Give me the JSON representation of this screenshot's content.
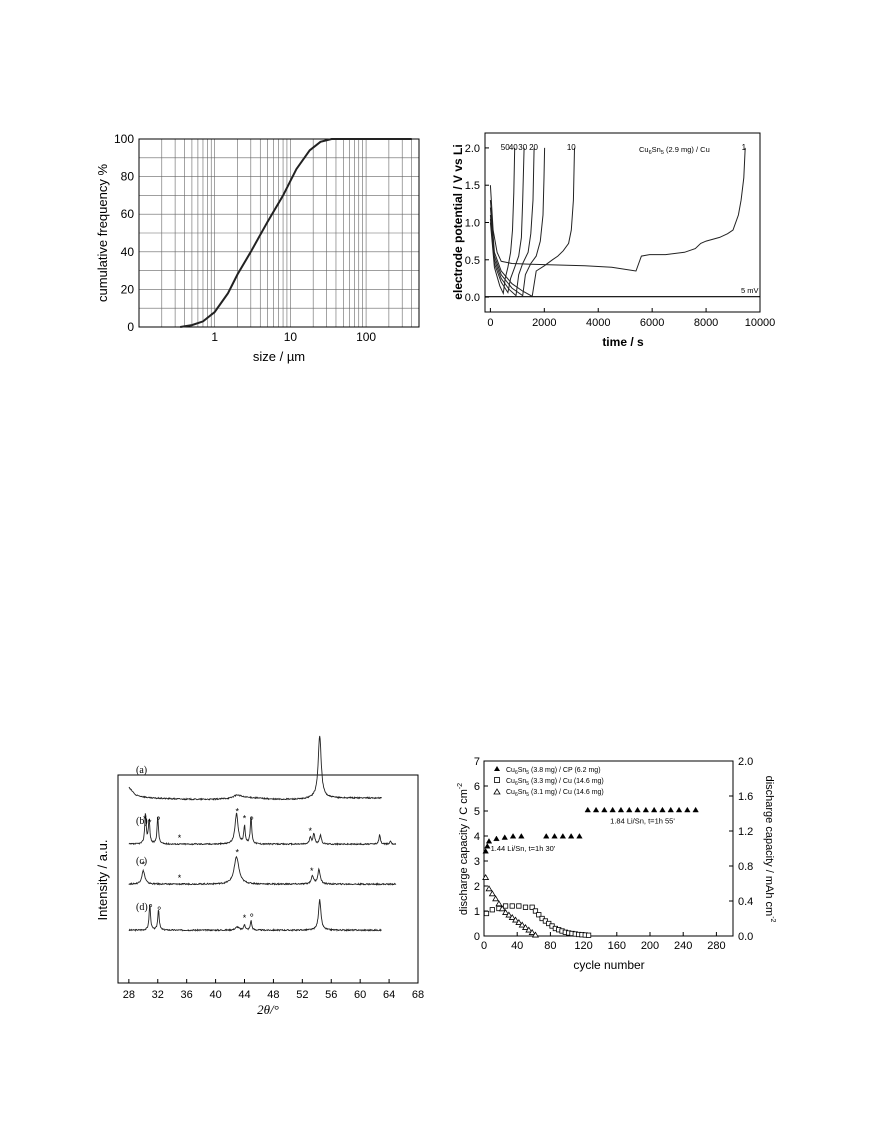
{
  "chart_data": [
    {
      "type": "line",
      "xlabel_prefix": "size / ",
      "xlabel_unit": "µm",
      "ylabel": "cumulative frequency %",
      "x_scale": "log",
      "xlim": [
        0.1,
        500
      ],
      "ylim": [
        0,
        100
      ],
      "xticks": [
        {
          "v": 1,
          "label": "1"
        },
        {
          "v": 10,
          "label": "10"
        },
        {
          "v": 100,
          "label": "100"
        }
      ],
      "yticks": [
        0,
        20,
        40,
        60,
        80,
        100
      ],
      "grid": true,
      "series": [
        {
          "x": [
            0.35,
            0.5,
            0.7,
            1.0,
            1.5,
            2,
            3,
            5,
            8,
            12,
            18,
            25,
            35,
            50,
            100,
            400
          ],
          "y": [
            0,
            1,
            3,
            8,
            18,
            28,
            40,
            56,
            70,
            84,
            94,
            98.5,
            100,
            100,
            100,
            100
          ]
        }
      ]
    },
    {
      "type": "line",
      "xlabel": "time / s",
      "ylabel": "electrode potential / V vs Li",
      "xlim": [
        -200,
        10000
      ],
      "ylim": [
        -0.2,
        2.2
      ],
      "xticks": [
        0,
        2000,
        4000,
        6000,
        8000,
        10000
      ],
      "yticks": [
        0.0,
        0.5,
        1.0,
        1.5,
        2.0
      ],
      "annotations": {
        "legend_text": "Cu6Sn5 (2.9 mg) / Cu",
        "cutoff": "5 mV",
        "cycle_labels": [
          {
            "label": "50",
            "x": 550
          },
          {
            "label": "40",
            "x": 850
          },
          {
            "label": "30",
            "x": 1200
          },
          {
            "label": "20",
            "x": 1600
          },
          {
            "label": "10",
            "x": 3000
          },
          {
            "label": "1",
            "x": 9400
          }
        ]
      },
      "series": [
        {
          "name": "1",
          "x": [
            0,
            100,
            250,
            400,
            800,
            1500,
            2500,
            3500,
            4500,
            5400,
            5500,
            5600,
            5900,
            6500,
            7200,
            7600,
            7800,
            8000,
            8500,
            8800,
            9000,
            9200,
            9300,
            9400,
            9450
          ],
          "y": [
            1.5,
            0.9,
            0.6,
            0.48,
            0.45,
            0.44,
            0.43,
            0.42,
            0.4,
            0.35,
            0.45,
            0.55,
            0.57,
            0.57,
            0.6,
            0.65,
            0.72,
            0.75,
            0.8,
            0.85,
            0.9,
            1.1,
            1.3,
            1.6,
            2.0
          ]
        },
        {
          "name": "10",
          "x": [
            0,
            150,
            400,
            800,
            1200,
            1550,
            1700,
            2000,
            2300,
            2500,
            2700,
            2900,
            3000,
            3080,
            3120
          ],
          "y": [
            1.3,
            0.6,
            0.35,
            0.18,
            0.08,
            0.01,
            0.35,
            0.42,
            0.5,
            0.55,
            0.62,
            0.72,
            0.9,
            1.3,
            2.0
          ]
        },
        {
          "name": "20",
          "x": [
            0,
            150,
            400,
            800,
            1200,
            1300,
            1500,
            1700,
            1850,
            1950,
            1990,
            2010
          ],
          "y": [
            1.2,
            0.55,
            0.3,
            0.12,
            0.02,
            0.3,
            0.45,
            0.55,
            0.75,
            1.1,
            1.6,
            2.0
          ]
        },
        {
          "name": "30",
          "x": [
            0,
            150,
            400,
            700,
            950,
            1050,
            1200,
            1400,
            1500,
            1580,
            1620
          ],
          "y": [
            1.1,
            0.5,
            0.25,
            0.1,
            0.02,
            0.3,
            0.45,
            0.6,
            0.85,
            1.3,
            2.0
          ]
        },
        {
          "name": "40",
          "x": [
            0,
            150,
            400,
            650,
            750,
            900,
            1050,
            1150,
            1200,
            1250
          ],
          "y": [
            1.05,
            0.45,
            0.2,
            0.06,
            0.25,
            0.4,
            0.55,
            0.8,
            1.3,
            2.0
          ]
        },
        {
          "name": "50",
          "x": [
            0,
            150,
            350,
            480,
            550,
            650,
            750,
            820,
            870,
            900
          ],
          "y": [
            1.0,
            0.4,
            0.15,
            0.05,
            0.25,
            0.4,
            0.6,
            0.9,
            1.4,
            2.0
          ]
        }
      ],
      "cutoff_line_y": 0.005
    },
    {
      "type": "line",
      "xlabel": "2θ/°",
      "ylabel": "Intensity / a.u.",
      "xlim": [
        26.5,
        68
      ],
      "xticks": [
        28,
        32,
        36,
        40,
        44,
        48,
        52,
        56,
        60,
        64,
        68
      ],
      "patterns": [
        {
          "label": "(a)",
          "offset": 3,
          "x_end": 63,
          "baseline": [
            [
              28,
              0.55
            ],
            [
              29,
              0.3
            ],
            [
              31,
              0.22
            ],
            [
              36,
              0.18
            ],
            [
              40,
              0.18
            ],
            [
              42,
              0.22
            ],
            [
              43,
              0.32
            ],
            [
              44,
              0.25
            ],
            [
              48,
              0.18
            ],
            [
              52,
              0.18
            ],
            [
              53.5,
              0.22
            ]
          ],
          "peaks": [
            {
              "x": 54.4,
              "h": 1.95,
              "w": 0.25
            }
          ],
          "markers": []
        },
        {
          "label": "(b)",
          "offset": 2,
          "x_end": 65,
          "baseline": [
            [
              28,
              0.12
            ],
            [
              42,
              0.12
            ],
            [
              65,
              0.12
            ]
          ],
          "peaks": [
            {
              "x": 30.3,
              "h": 0.95,
              "w": 0.12
            },
            {
              "x": 30.8,
              "h": 0.75,
              "w": 0.12
            },
            {
              "x": 32.0,
              "h": 0.85,
              "w": 0.12
            },
            {
              "x": 42.9,
              "h": 0.95,
              "w": 0.25
            },
            {
              "x": 44.0,
              "h": 0.55,
              "w": 0.12
            },
            {
              "x": 44.9,
              "h": 0.85,
              "w": 0.12
            },
            {
              "x": 53.1,
              "h": 0.2,
              "w": 0.15
            },
            {
              "x": 53.6,
              "h": 0.32,
              "w": 0.15
            },
            {
              "x": 54.5,
              "h": 0.28,
              "w": 0.15
            },
            {
              "x": 62.7,
              "h": 0.3,
              "w": 0.12
            },
            {
              "x": 64.2,
              "h": 0.1,
              "w": 0.12
            }
          ],
          "markers": [
            {
              "x": 30.2,
              "sym": "*"
            },
            {
              "x": 30.9,
              "sym": "*"
            },
            {
              "x": 32.1,
              "sym": "o"
            },
            {
              "x": 35.0,
              "sym": "*"
            },
            {
              "x": 43.0,
              "sym": "*"
            },
            {
              "x": 44.0,
              "sym": "*"
            },
            {
              "x": 45.0,
              "sym": "o"
            },
            {
              "x": 53.1,
              "sym": "*"
            }
          ]
        },
        {
          "label": "(c)",
          "offset": 1,
          "x_end": 65,
          "baseline": [
            [
              28,
              0.12
            ],
            [
              65,
              0.12
            ]
          ],
          "peaks": [
            {
              "x": 30.0,
              "h": 0.42,
              "w": 0.25
            },
            {
              "x": 42.9,
              "h": 0.85,
              "w": 0.4
            },
            {
              "x": 53.4,
              "h": 0.25,
              "w": 0.2
            },
            {
              "x": 54.3,
              "h": 0.45,
              "w": 0.2
            }
          ],
          "markers": [
            {
              "x": 30.0,
              "sym": "*"
            },
            {
              "x": 35.0,
              "sym": "*"
            },
            {
              "x": 43.0,
              "sym": "*"
            },
            {
              "x": 53.3,
              "sym": "*"
            }
          ]
        },
        {
          "label": "(d)",
          "offset": 0,
          "x_end": 63,
          "baseline": [
            [
              28,
              0.12
            ],
            [
              63,
              0.12
            ]
          ],
          "peaks": [
            {
              "x": 30.9,
              "h": 0.8,
              "w": 0.12
            },
            {
              "x": 32.1,
              "h": 0.65,
              "w": 0.12
            },
            {
              "x": 43.0,
              "h": 0.1,
              "w": 0.3
            },
            {
              "x": 44.0,
              "h": 0.18,
              "w": 0.12
            },
            {
              "x": 44.9,
              "h": 0.3,
              "w": 0.12
            },
            {
              "x": 54.4,
              "h": 0.95,
              "w": 0.2
            }
          ],
          "markers": [
            {
              "x": 31.0,
              "sym": "o"
            },
            {
              "x": 32.2,
              "sym": "o"
            },
            {
              "x": 44.0,
              "sym": "*"
            },
            {
              "x": 45.0,
              "sym": "o"
            }
          ]
        }
      ]
    },
    {
      "type": "scatter",
      "xlabel": "cycle number",
      "ylabel": "discharge capacity / C cm⁻²",
      "y2label": "discharge capacity / mAh cm⁻²",
      "xlim": [
        0,
        300
      ],
      "ylim": [
        0,
        7
      ],
      "y2lim": [
        0,
        2.0
      ],
      "xticks": [
        0,
        40,
        80,
        120,
        160,
        200,
        240,
        280
      ],
      "yticks": [
        0,
        1,
        2,
        3,
        4,
        5,
        6,
        7
      ],
      "y2ticks": [
        0.0,
        0.4,
        0.8,
        1.2,
        1.6,
        2.0
      ],
      "annotations": [
        {
          "text": "1.44 Li/Sn, t=1h 30'",
          "x": 8,
          "y": 3.4
        },
        {
          "text": "1.84 Li/Sn, t=1h 55'",
          "x": 152,
          "y": 4.5
        }
      ],
      "series": [
        {
          "name": "Cu6Sn5 (3.8 mg) / CP (6.2 mg)",
          "marker": "filled-triangle",
          "x": [
            2,
            4,
            6,
            15,
            25,
            35,
            45,
            75,
            85,
            95,
            105,
            115,
            125,
            135,
            145,
            155,
            165,
            175,
            185,
            195,
            205,
            215,
            225,
            235,
            245,
            255
          ],
          "y": [
            3.4,
            3.6,
            3.8,
            3.9,
            3.95,
            4.0,
            4.0,
            4.0,
            4.0,
            4.0,
            4.0,
            4.0,
            5.05,
            5.05,
            5.05,
            5.05,
            5.05,
            5.05,
            5.05,
            5.05,
            5.05,
            5.05,
            5.05,
            5.05,
            5.05,
            5.05
          ]
        },
        {
          "name": "Cu6Sn5 (3.3 mg) / Cu (14.6 mg)",
          "marker": "open-square",
          "x": [
            3,
            10,
            18,
            26,
            34,
            42,
            50,
            58,
            62,
            66,
            70,
            74,
            78,
            82,
            86,
            90,
            94,
            98,
            102,
            106,
            110,
            114,
            118,
            122,
            126
          ],
          "y": [
            0.9,
            1.05,
            1.1,
            1.2,
            1.2,
            1.2,
            1.15,
            1.15,
            1.0,
            0.85,
            0.7,
            0.6,
            0.5,
            0.4,
            0.3,
            0.25,
            0.2,
            0.15,
            0.12,
            0.1,
            0.08,
            0.06,
            0.05,
            0.04,
            0.03
          ]
        },
        {
          "name": "Cu6Sn5 (3.1 mg) / Cu (14.6 mg)",
          "marker": "open-triangle",
          "x": [
            2,
            6,
            10,
            14,
            18,
            22,
            26,
            30,
            34,
            38,
            42,
            46,
            50,
            54,
            58,
            62
          ],
          "y": [
            2.35,
            1.9,
            1.7,
            1.5,
            1.3,
            1.1,
            0.95,
            0.85,
            0.75,
            0.65,
            0.55,
            0.45,
            0.35,
            0.25,
            0.15,
            0.05
          ]
        }
      ]
    }
  ]
}
